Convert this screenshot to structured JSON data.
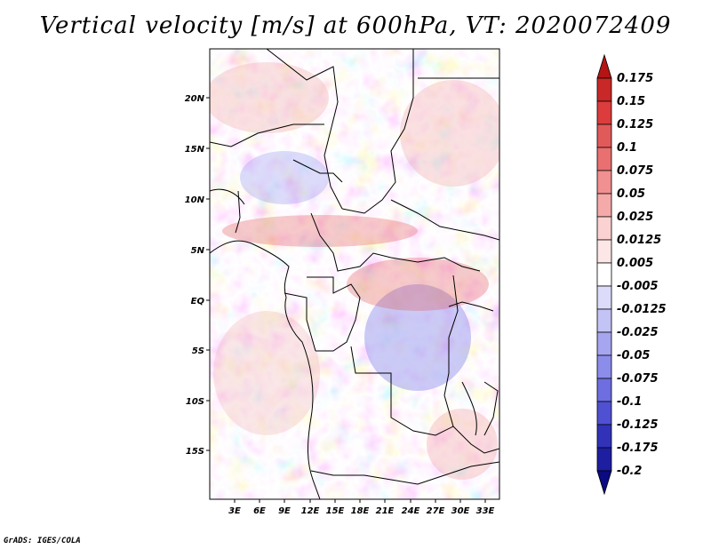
{
  "title": "Vertical velocity [m/s] at 600hPa, VT: 2020072409",
  "footer": "GrADS: IGES/COLA",
  "map": {
    "lat_labels": [
      "20N",
      "15N",
      "10N",
      "5N",
      "EQ",
      "5S",
      "10S",
      "15S"
    ],
    "lon_labels": [
      "3E",
      "6E",
      "9E",
      "12E",
      "15E",
      "18E",
      "21E",
      "24E",
      "27E",
      "30E",
      "33E"
    ]
  },
  "colorbar": {
    "labels": [
      "0.175",
      "0.15",
      "0.125",
      "0.1",
      "0.075",
      "0.05",
      "0.025",
      "0.0125",
      "0.005",
      "-0.005",
      "-0.0125",
      "-0.025",
      "-0.05",
      "-0.075",
      "-0.1",
      "-0.125",
      "-0.175",
      "-0.2"
    ],
    "colors": [
      "#b41414",
      "#c82828",
      "#dc3c3c",
      "#e15a5a",
      "#e87070",
      "#f09090",
      "#f5aaaa",
      "#fad2d2",
      "#fde6e6",
      "#ffffff",
      "#dcdcfa",
      "#c3c3f5",
      "#a5a5f0",
      "#8c8ceb",
      "#6e6ee1",
      "#5050d2",
      "#3232b9",
      "#1e1ea0",
      "#0a0a82"
    ]
  }
}
